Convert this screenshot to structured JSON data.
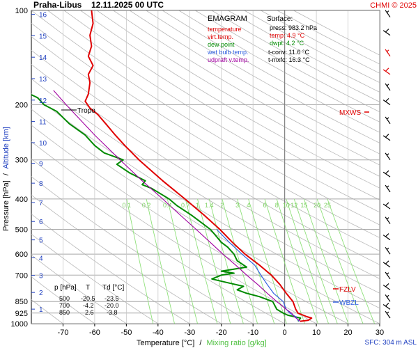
{
  "header": {
    "station": "Praha-Libus",
    "datetime": "12.11.2025 00 UTC",
    "copyright": "CHMI © 2025"
  },
  "legend": {
    "title": "EMAGRAM",
    "items": [
      {
        "label": "temperature",
        "color": "#e00000"
      },
      {
        "label": "virt.temp.",
        "color": "#e00000"
      },
      {
        "label": "dew point",
        "color": "#008a00"
      },
      {
        "label": "wet bulb temp.",
        "color": "#3060e0"
      },
      {
        "label": "udpraft v.temp.",
        "color": "#a000a0"
      }
    ]
  },
  "surface": {
    "title": "Surface:",
    "lines": [
      {
        "text": "press: 983.2 hPa",
        "color": "#000000"
      },
      {
        "text": "temp: 4.9 °C",
        "color": "#e00000"
      },
      {
        "text": "dwpt: 4.2 °C",
        "color": "#008a00"
      },
      {
        "text": "t-conv: 11.6 °C",
        "color": "#000000"
      },
      {
        "text": "t-mxfc: 16.3 °C",
        "color": "#000000"
      }
    ]
  },
  "levels_table": {
    "headers": [
      "p [hPa]",
      "T",
      "Td [°C]"
    ],
    "rows": [
      [
        "500",
        "-20.5",
        "-23.5"
      ],
      [
        "700",
        "-4.2",
        "-20.0"
      ],
      [
        "850",
        "2.6",
        "-3.8"
      ]
    ]
  },
  "annotations": {
    "tropo": "Tropo",
    "mxws": "MXWS",
    "fzlv": "FZLV",
    "wbzl": "WBZL",
    "sfc": "SFC: 304 m ASL"
  },
  "axes": {
    "ylabel_left": "Pressure [hPa]",
    "ylabel_sep": "/",
    "ylabel_right": "Altitude [km]",
    "xlabel_left": "Temperature [°C]",
    "xlabel_sep": "/",
    "xlabel_right": "Mixing ratio [g/kg]"
  },
  "colors": {
    "temperature": "#e00000",
    "dewpoint": "#008a00",
    "wetbulb": "#3060e0",
    "parcel": "#a000a0",
    "mixing": "#8fe07a",
    "altitude": "#2040c0",
    "grid": "#a8a8a8"
  },
  "chart_data": {
    "type": "line",
    "y_scale": "log-pressure",
    "ylim": [
      1000,
      100
    ],
    "xlim": [
      -80,
      30
    ],
    "x_ticks": [
      -70,
      -60,
      -50,
      -40,
      -30,
      -20,
      -10,
      0,
      10,
      20,
      30
    ],
    "p_ticks": [
      100,
      200,
      300,
      400,
      500,
      600,
      700,
      850,
      925,
      1000
    ],
    "altitude_ticks_km": [
      1,
      2,
      3,
      4,
      5,
      6,
      7,
      8,
      9,
      10,
      11,
      12,
      13,
      14,
      15,
      16
    ],
    "mixing_ratio_labels": [
      "0.1",
      "0.2",
      "0.4",
      "0.7",
      "1",
      "1.4",
      "2",
      "3",
      "4",
      "6",
      "8",
      "10",
      "12",
      "15",
      "20",
      "25"
    ],
    "series": [
      {
        "key": "temperature",
        "points": [
          [
            983,
            4.9
          ],
          [
            975,
            7.5
          ],
          [
            960,
            8.5
          ],
          [
            950,
            7.0
          ],
          [
            925,
            4.2
          ],
          [
            900,
            3.5
          ],
          [
            850,
            2.6
          ],
          [
            800,
            0.5
          ],
          [
            750,
            -1.5
          ],
          [
            700,
            -4.2
          ],
          [
            650,
            -8.0
          ],
          [
            600,
            -12.5
          ],
          [
            550,
            -16.5
          ],
          [
            500,
            -20.5
          ],
          [
            450,
            -25.5
          ],
          [
            400,
            -31.5
          ],
          [
            350,
            -38.5
          ],
          [
            300,
            -46.0
          ],
          [
            270,
            -50.5
          ],
          [
            250,
            -53.5
          ],
          [
            230,
            -56.5
          ],
          [
            215,
            -59.0
          ],
          [
            205,
            -61.5
          ],
          [
            195,
            -63.0
          ],
          [
            185,
            -62.0
          ],
          [
            170,
            -61.5
          ],
          [
            160,
            -62.0
          ],
          [
            150,
            -60.5
          ],
          [
            140,
            -62.0
          ],
          [
            130,
            -61.0
          ],
          [
            120,
            -61.5
          ],
          [
            110,
            -60.5
          ],
          [
            100,
            -61.0
          ]
        ]
      },
      {
        "key": "dewpoint",
        "points": [
          [
            983,
            4.2
          ],
          [
            975,
            4.5
          ],
          [
            960,
            5.0
          ],
          [
            940,
            1.0
          ],
          [
            925,
            -0.5
          ],
          [
            900,
            -2.5
          ],
          [
            850,
            -3.8
          ],
          [
            820,
            -8.0
          ],
          [
            800,
            -12.0
          ],
          [
            780,
            -15.0
          ],
          [
            760,
            -13.0
          ],
          [
            740,
            -18.0
          ],
          [
            720,
            -23.0
          ],
          [
            700,
            -20.0
          ],
          [
            690,
            -16.0
          ],
          [
            680,
            -20.0
          ],
          [
            660,
            -12.0
          ],
          [
            630,
            -15.0
          ],
          [
            600,
            -16.0
          ],
          [
            570,
            -18.0
          ],
          [
            550,
            -20.0
          ],
          [
            520,
            -22.0
          ],
          [
            500,
            -23.5
          ],
          [
            470,
            -27.0
          ],
          [
            450,
            -29.5
          ],
          [
            420,
            -34.0
          ],
          [
            400,
            -36.5
          ],
          [
            370,
            -42.0
          ],
          [
            360,
            -45.0
          ],
          [
            350,
            -44.0
          ],
          [
            330,
            -49.0
          ],
          [
            310,
            -53.0
          ],
          [
            300,
            -51.0
          ],
          [
            285,
            -57.0
          ],
          [
            270,
            -60.0
          ],
          [
            250,
            -63.0
          ],
          [
            230,
            -68.0
          ],
          [
            210,
            -72.0
          ],
          [
            200,
            -76.0
          ],
          [
            190,
            -78.0
          ],
          [
            180,
            -83.0
          ]
        ]
      },
      {
        "key": "wetbulb",
        "points": [
          [
            983,
            4.5
          ],
          [
            950,
            3.5
          ],
          [
            925,
            1.6
          ],
          [
            900,
            0.5
          ],
          [
            850,
            -0.5
          ],
          [
            800,
            -3.5
          ],
          [
            750,
            -5.5
          ],
          [
            700,
            -7.5
          ],
          [
            650,
            -9.5
          ],
          [
            600,
            -13.5
          ],
          [
            550,
            -17.5
          ],
          [
            500,
            -21.5
          ]
        ]
      },
      {
        "key": "parcel",
        "points": [
          [
            983,
            4.9
          ],
          [
            950,
            3.0
          ],
          [
            925,
            2.2
          ],
          [
            900,
            0.5
          ],
          [
            850,
            -2.5
          ],
          [
            800,
            -5.5
          ],
          [
            750,
            -8.5
          ],
          [
            700,
            -12.0
          ],
          [
            650,
            -15.5
          ],
          [
            600,
            -19.5
          ],
          [
            550,
            -23.5
          ],
          [
            500,
            -28.0
          ],
          [
            450,
            -33.0
          ],
          [
            400,
            -38.5
          ],
          [
            350,
            -45.0
          ],
          [
            300,
            -52.0
          ],
          [
            250,
            -60.0
          ],
          [
            200,
            -69.0
          ],
          [
            180,
            -73.0
          ]
        ]
      }
    ]
  }
}
